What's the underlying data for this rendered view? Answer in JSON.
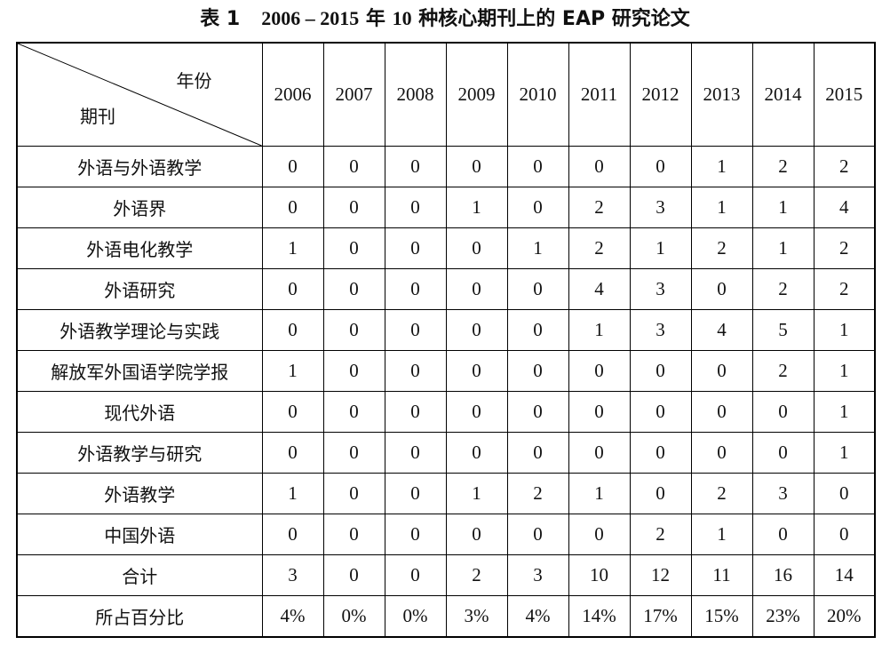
{
  "caption": {
    "label": "表 1",
    "years": "2006 – 2015",
    "rest_a": "年",
    "count": "10",
    "rest_b": "种核心期刊上的 EAP 研究论文"
  },
  "header": {
    "corner_year": "年份",
    "corner_journal": "期刊",
    "years": [
      "2006",
      "2007",
      "2008",
      "2009",
      "2010",
      "2011",
      "2012",
      "2013",
      "2014",
      "2015"
    ]
  },
  "rows": [
    {
      "label": "外语与外语教学",
      "values": [
        "0",
        "0",
        "0",
        "0",
        "0",
        "0",
        "0",
        "1",
        "2",
        "2"
      ]
    },
    {
      "label": "外语界",
      "values": [
        "0",
        "0",
        "0",
        "1",
        "0",
        "2",
        "3",
        "1",
        "1",
        "4"
      ]
    },
    {
      "label": "外语电化教学",
      "values": [
        "1",
        "0",
        "0",
        "0",
        "1",
        "2",
        "1",
        "2",
        "1",
        "2"
      ]
    },
    {
      "label": "外语研究",
      "values": [
        "0",
        "0",
        "0",
        "0",
        "0",
        "4",
        "3",
        "0",
        "2",
        "2"
      ]
    },
    {
      "label": "外语教学理论与实践",
      "values": [
        "0",
        "0",
        "0",
        "0",
        "0",
        "1",
        "3",
        "4",
        "5",
        "1"
      ]
    },
    {
      "label": "解放军外国语学院学报",
      "values": [
        "1",
        "0",
        "0",
        "0",
        "0",
        "0",
        "0",
        "0",
        "2",
        "1"
      ]
    },
    {
      "label": "现代外语",
      "values": [
        "0",
        "0",
        "0",
        "0",
        "0",
        "0",
        "0",
        "0",
        "0",
        "1"
      ]
    },
    {
      "label": "外语教学与研究",
      "values": [
        "0",
        "0",
        "0",
        "0",
        "0",
        "0",
        "0",
        "0",
        "0",
        "1"
      ]
    },
    {
      "label": "外语教学",
      "values": [
        "1",
        "0",
        "0",
        "1",
        "2",
        "1",
        "0",
        "2",
        "3",
        "0"
      ]
    },
    {
      "label": "中国外语",
      "values": [
        "0",
        "0",
        "0",
        "0",
        "0",
        "0",
        "2",
        "1",
        "0",
        "0"
      ]
    },
    {
      "label": "合计",
      "values": [
        "3",
        "0",
        "0",
        "2",
        "3",
        "10",
        "12",
        "11",
        "16",
        "14"
      ]
    },
    {
      "label": "所占百分比",
      "values": [
        "4%",
        "0%",
        "0%",
        "3%",
        "4%",
        "14%",
        "17%",
        "15%",
        "23%",
        "20%"
      ]
    }
  ]
}
